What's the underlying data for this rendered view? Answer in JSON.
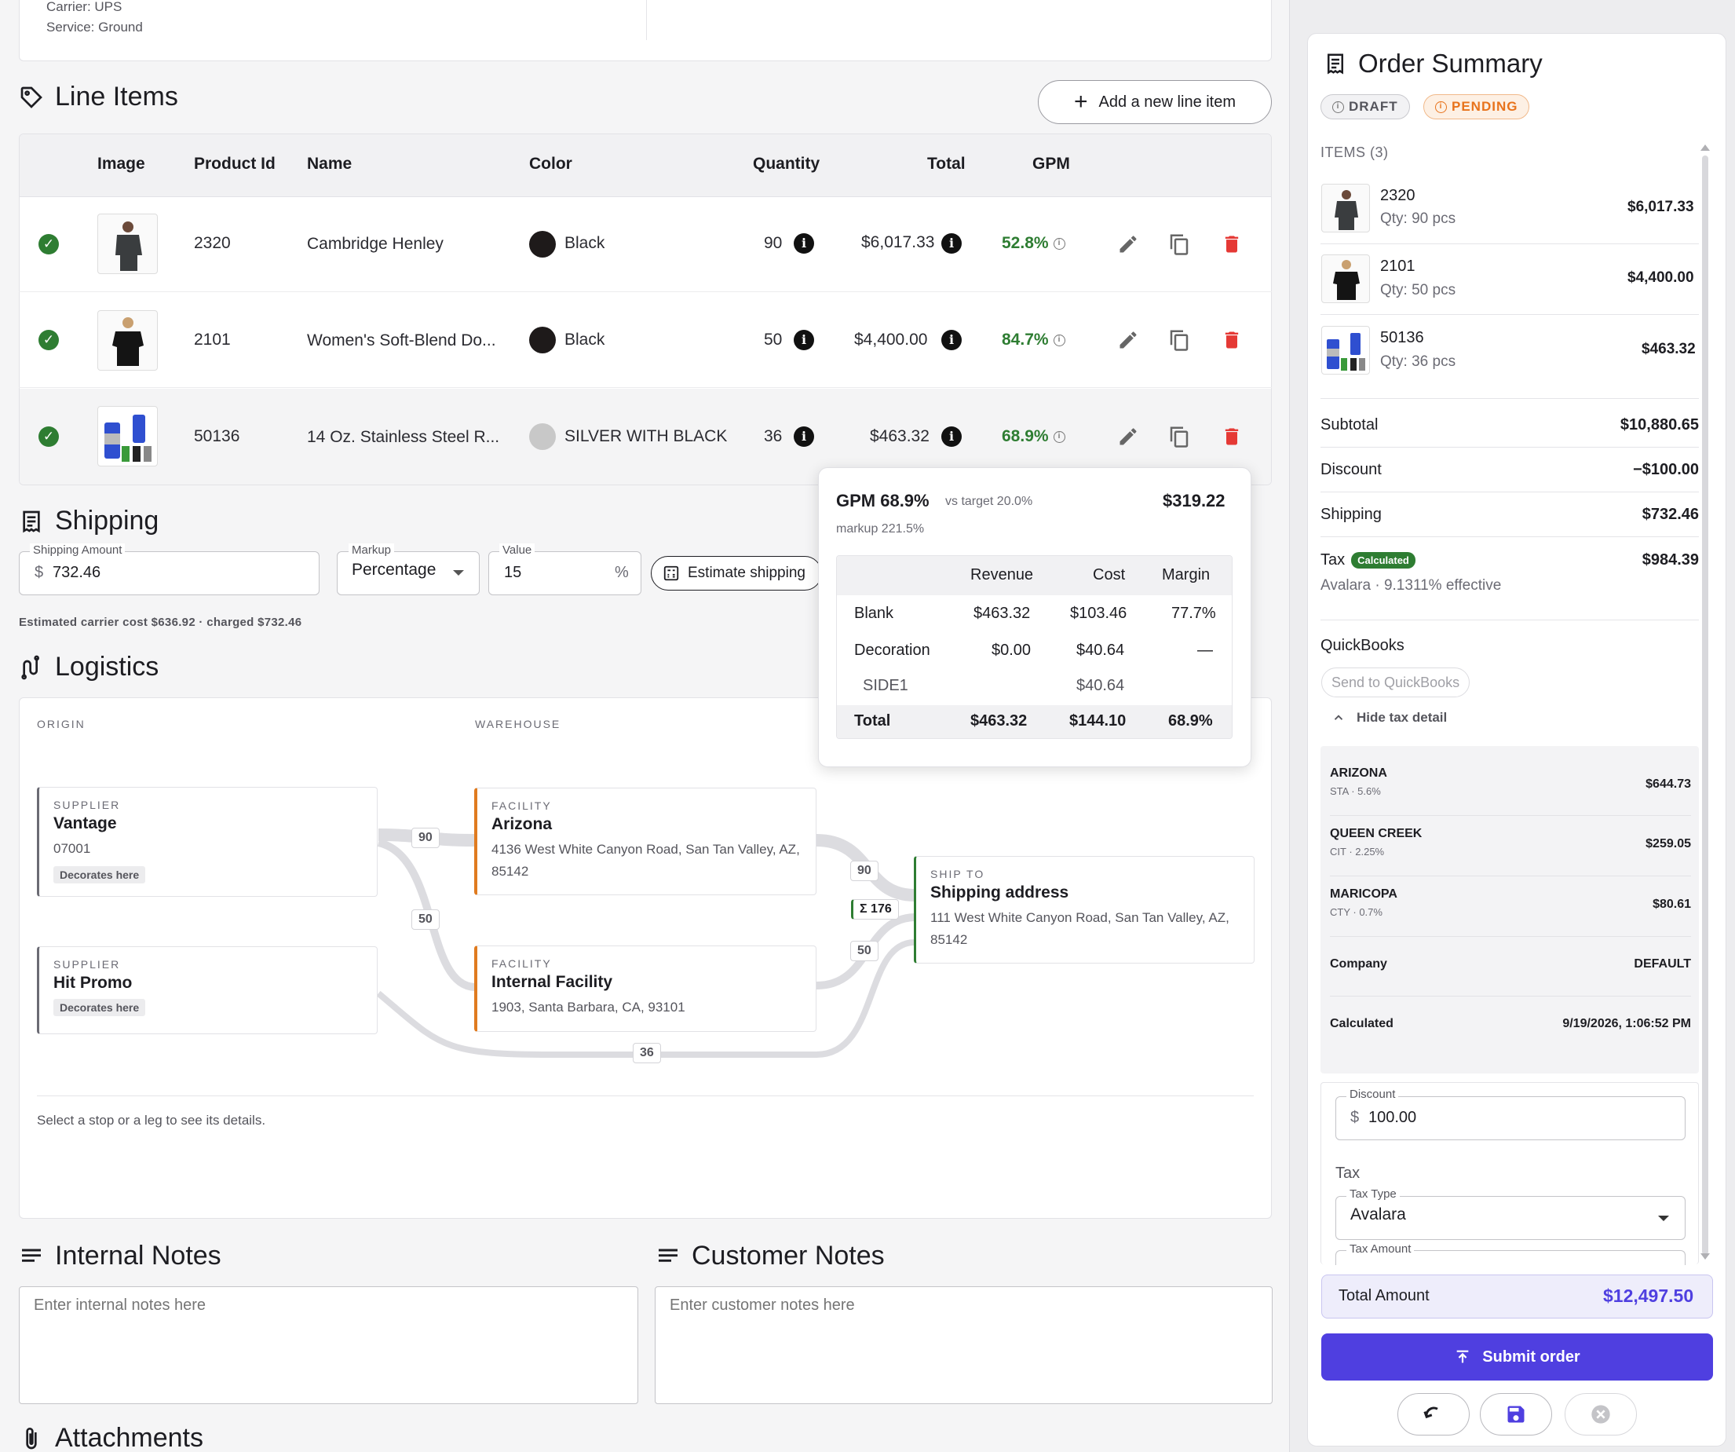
{
  "shipment_top": {
    "carrier": "Carrier: UPS",
    "service": "Service: Ground"
  },
  "line_items": {
    "title": "Line Items",
    "add_button": "Add a new line item",
    "columns": [
      "Image",
      "Product Id",
      "Name",
      "Color",
      "Quantity",
      "Total",
      "GPM"
    ],
    "rows": [
      {
        "product_id": "2320",
        "name": "Cambridge Henley",
        "color_name": "Black",
        "swatch": "#1e1a1a",
        "quantity": "90",
        "total": "$6,017.33",
        "gpm": "52.8%"
      },
      {
        "product_id": "2101",
        "name": "Women's Soft-Blend Do...",
        "color_name": "Black",
        "swatch": "#1e1a1a",
        "quantity": "50",
        "total": "$4,400.00",
        "gpm": "84.7%"
      },
      {
        "product_id": "50136",
        "name": "14 Oz. Stainless Steel R...",
        "color_name": "SILVER WITH BLACK",
        "swatch": "#c8c8c8",
        "quantity": "36",
        "total": "$463.32",
        "gpm": "68.9%"
      }
    ]
  },
  "gpm_popover": {
    "title": "GPM 68.9%",
    "target": "vs target 20.0%",
    "amount": "$319.22",
    "markup": "markup 221.5%",
    "headers": [
      "Revenue",
      "Cost",
      "Margin"
    ],
    "rows": [
      {
        "label": "Blank",
        "revenue": "$463.32",
        "cost": "$103.46",
        "margin": "77.7%"
      },
      {
        "label": "Decoration",
        "revenue": "$0.00",
        "cost": "$40.64",
        "margin": "—"
      },
      {
        "label": "SIDE1",
        "revenue": "",
        "cost": "$40.64",
        "margin": ""
      }
    ],
    "total": {
      "label": "Total",
      "revenue": "$463.32",
      "cost": "$144.10",
      "margin": "68.9%"
    }
  },
  "shipping": {
    "title": "Shipping",
    "amount_label": "Shipping Amount",
    "currency": "$",
    "amount_value": "732.46",
    "markup_label": "Markup",
    "markup_value": "Percentage",
    "value_label": "Value",
    "value_value": "15",
    "percent": "%",
    "estimate_button": "Estimate shipping",
    "note": "Estimated carrier cost $636.92 · charged $732.46"
  },
  "logistics": {
    "title": "Logistics",
    "col_origin": "ORIGIN",
    "col_warehouse": "WAREHOUSE",
    "suppliers": [
      {
        "kind": "SUPPLIER",
        "name": "Vantage",
        "sub": "07001",
        "tag": "Decorates here"
      },
      {
        "kind": "SUPPLIER",
        "name": "Hit Promo",
        "tag": "Decorates here"
      }
    ],
    "facilities": [
      {
        "kind": "FACILITY",
        "name": "Arizona",
        "address": "4136 West White Canyon Road, San Tan Valley, AZ, 85142"
      },
      {
        "kind": "FACILITY",
        "name": "Internal Facility",
        "address": "1903, Santa Barbara, CA, 93101"
      }
    ],
    "ship_to": {
      "kind": "SHIP TO",
      "name": "Shipping address",
      "address": "111 West White Canyon Road, San Tan Valley, AZ, 85142"
    },
    "flows": {
      "v_a": "90",
      "v_i": "50",
      "a_ship": "90",
      "i_ship": "50",
      "h_ship": "36",
      "sum": "Σ 176"
    },
    "hint": "Select a stop or a leg to see its details."
  },
  "notes": {
    "internal_title": "Internal Notes",
    "internal_placeholder": "Enter internal notes here",
    "customer_title": "Customer Notes",
    "customer_placeholder": "Enter customer notes here"
  },
  "attachments": {
    "title": "Attachments"
  },
  "summary": {
    "title": "Order Summary",
    "badge_draft": "DRAFT",
    "badge_pending": "PENDING",
    "items_label": "ITEMS (3)",
    "items": [
      {
        "id": "2320",
        "qty": "Qty: 90 pcs",
        "price": "$6,017.33"
      },
      {
        "id": "2101",
        "qty": "Qty: 50 pcs",
        "price": "$4,400.00"
      },
      {
        "id": "50136",
        "qty": "Qty: 36 pcs",
        "price": "$463.32"
      }
    ],
    "subtotal_label": "Subtotal",
    "subtotal": "$10,880.65",
    "discount_label": "Discount",
    "discount": "−$100.00",
    "shipping_label": "Shipping",
    "shipping": "$732.46",
    "tax_label": "Tax",
    "tax_badge": "Calculated",
    "tax": "$984.39",
    "tax_sub": "Avalara · 9.1311% effective",
    "qb_title": "QuickBooks",
    "qb_button": "Send to QuickBooks",
    "hide_tax": "Hide tax detail",
    "tax_lines": [
      {
        "name": "ARIZONA",
        "sub": "STA · 5.6%",
        "amount": "$644.73"
      },
      {
        "name": "QUEEN CREEK",
        "sub": "CIT · 2.25%",
        "amount": "$259.05"
      },
      {
        "name": "MARICOPA",
        "sub": "CTY · 0.7%",
        "amount": "$80.61"
      }
    ],
    "company_label": "Company",
    "company": "DEFAULT",
    "calculated_label": "Calculated",
    "calculated": "9/19/2026, 1:06:52 PM",
    "discount_field_label": "Discount",
    "discount_currency": "$",
    "discount_field": "100.00",
    "tax_section": "Tax",
    "tax_type_label": "Tax Type",
    "tax_type": "Avalara",
    "tax_amount_label": "Tax Amount",
    "total_label": "Total Amount",
    "total": "$12,497.50",
    "submit": "Submit order"
  },
  "colors": {
    "accent": "#4f3fe0",
    "success": "#2e7d32",
    "danger": "#e53935",
    "pending": "#e8731c",
    "warehouse": "#e07b1f",
    "shipto": "#2e7d32"
  }
}
